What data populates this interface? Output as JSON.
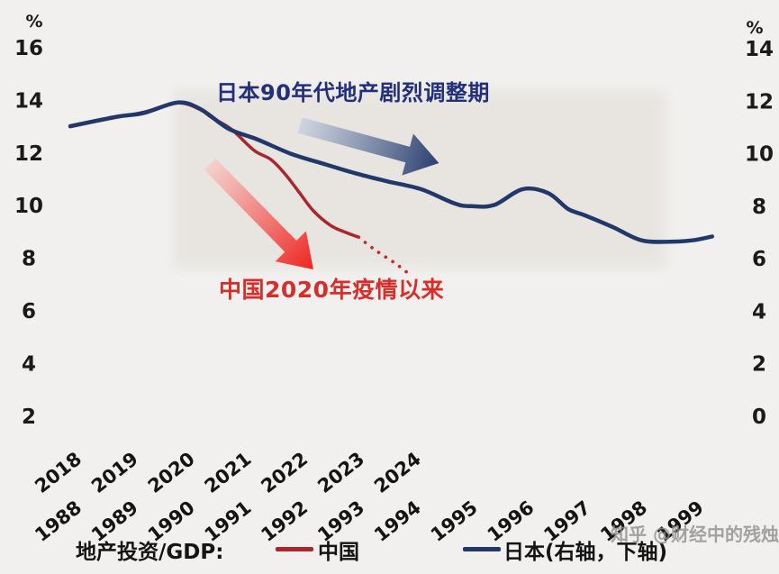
{
  "page": {
    "background": "#f2f0ee"
  },
  "watermark": "知乎 @财经中的残烛",
  "legend": {
    "prefix": "地产投资/GDP:",
    "items": [
      {
        "label": "中国",
        "color": "#a9262d"
      },
      {
        "label": "日本(右轴，下轴)",
        "color": "#21386b"
      }
    ]
  },
  "chart_data": {
    "type": "line",
    "title": "",
    "description": "地产投资/GDP：中国(2018-2024，左轴、上排年份)与日本(1988-1999，右轴、下排年份)走势对比",
    "left_axis": {
      "unit": "%",
      "ticks": [
        16,
        14,
        12,
        10,
        8,
        6,
        4,
        2
      ]
    },
    "right_axis": {
      "unit": "%",
      "ticks": [
        14,
        12,
        10,
        8,
        6,
        4,
        2,
        0
      ]
    },
    "x_axes": {
      "china": {
        "ticks": [
          2018,
          2019,
          2020,
          2021,
          2022,
          2023,
          2024
        ]
      },
      "japan": {
        "ticks": [
          1988,
          1989,
          1990,
          1991,
          1992,
          1993,
          1994,
          1995,
          1996,
          1997,
          1998,
          1999
        ]
      }
    },
    "series": [
      {
        "name": "中国",
        "axis": "left",
        "x_axis": "china",
        "color": "#a9262d",
        "dotted_color": "#c8241f",
        "points": [
          [
            2018.0,
            13.0
          ],
          [
            2018.8,
            13.35
          ],
          [
            2019.3,
            13.55
          ],
          [
            2019.9,
            13.9
          ],
          [
            2020.3,
            13.65
          ],
          [
            2020.5,
            13.35
          ],
          [
            2020.85,
            12.9
          ],
          [
            2021.25,
            12.1
          ],
          [
            2021.55,
            11.75
          ],
          [
            2021.8,
            11.2
          ],
          [
            2022.05,
            10.5
          ],
          [
            2022.3,
            9.8
          ],
          [
            2022.6,
            9.25
          ],
          [
            2022.85,
            9.0
          ],
          [
            2023.1,
            8.8
          ]
        ],
        "projected_dotted": [
          [
            2023.1,
            8.8
          ],
          [
            2023.4,
            8.3
          ],
          [
            2023.75,
            7.8
          ],
          [
            2024.05,
            7.3
          ]
        ]
      },
      {
        "name": "日本(右轴，下轴)",
        "axis": "right",
        "x_axis": "japan",
        "color": "#21386b",
        "points": [
          [
            1988.0,
            11.05
          ],
          [
            1988.8,
            11.4
          ],
          [
            1989.3,
            11.55
          ],
          [
            1989.9,
            11.95
          ],
          [
            1990.3,
            11.7
          ],
          [
            1990.8,
            10.95
          ],
          [
            1991.3,
            10.55
          ],
          [
            1991.9,
            10.0
          ],
          [
            1992.5,
            9.6
          ],
          [
            1993.05,
            9.25
          ],
          [
            1993.6,
            8.95
          ],
          [
            1994.2,
            8.65
          ],
          [
            1994.8,
            8.1
          ],
          [
            1995.1,
            8.0
          ],
          [
            1995.5,
            8.05
          ],
          [
            1996.0,
            8.65
          ],
          [
            1996.45,
            8.5
          ],
          [
            1996.8,
            7.9
          ],
          [
            1997.1,
            7.65
          ],
          [
            1997.6,
            7.2
          ],
          [
            1998.1,
            6.7
          ],
          [
            1998.6,
            6.65
          ],
          [
            1999.0,
            6.7
          ],
          [
            1999.35,
            6.85
          ]
        ]
      }
    ],
    "annotations": {
      "japan_period": {
        "text": "日本90年代地产剧烈调整期",
        "color": "#22307c"
      },
      "china_covid": {
        "text": "中国2020年疫情以来",
        "color": "#d62f2b"
      },
      "trend_arrows": [
        {
          "series": "日本",
          "from_color": "#ccd2e0",
          "to_color": "#2b4070"
        },
        {
          "series": "中国",
          "from_color": "#f6cdc9",
          "to_color": "#ee2420"
        }
      ]
    },
    "highlight_region": {
      "x_from_japan_year": 1989.83,
      "x_to_japan_year": 1998.54,
      "meaning": "日本90年代地产剧烈调整期"
    }
  }
}
